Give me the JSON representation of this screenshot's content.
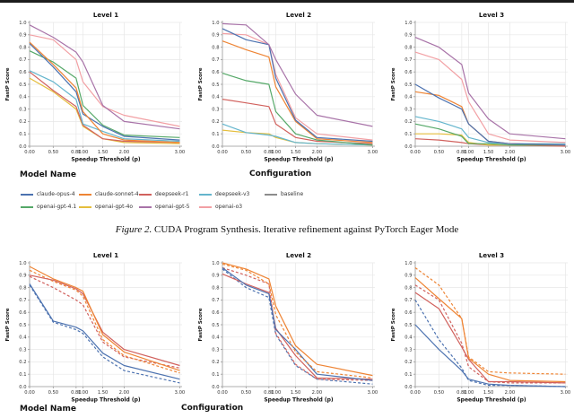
{
  "axis": {
    "xlabel": "Speedup Threshold (p)",
    "ylabel": "FastP Score",
    "x_ticks": [
      "0.00",
      "0.50",
      "0.80",
      "1.00",
      "1.50",
      "2.00",
      "3.00"
    ],
    "x_tick_pos": [
      0.0,
      0.155,
      0.305,
      0.35,
      0.48,
      0.62,
      0.985
    ],
    "y_ticks": [
      "1.0",
      "0.9",
      "0.8",
      "0.7",
      "0.6",
      "0.5",
      "0.4",
      "0.3",
      "0.2",
      "0.1",
      "0.0"
    ],
    "ylim": [
      0.0,
      1.0
    ],
    "grid": true
  },
  "colors": {
    "blue": "#4C72B0",
    "orange": "#EE8434",
    "red": "#D1615D",
    "cyan": "#64B5CD",
    "gray": "#8C8C8C",
    "green": "#55A868",
    "yellow": "#E5BE3D",
    "purple": "#A873A8",
    "pink": "#F2A0A4"
  },
  "caption": {
    "prefix": "Figure 2.",
    "text": " CUDA Program Synthesis. Iterative refinement against PyTorch Eager Mode"
  },
  "figure_top": {
    "legend": {
      "model_name_title": "Model Name",
      "configuration_title": "Configuration",
      "rows": [
        [
          {
            "label": "claude-opus-4",
            "color": "#4C72B0",
            "dash": false
          },
          {
            "label": "claude-sonnet-4",
            "color": "#EE8434",
            "dash": false
          },
          {
            "label": "deepseek-r1",
            "color": "#D1615D",
            "dash": false
          },
          {
            "label": "deepseek-v3",
            "color": "#64B5CD",
            "dash": false
          },
          {
            "label": "baseline",
            "color": "#8C8C8C",
            "dash": false
          }
        ],
        [
          {
            "label": "openai-gpt-4.1",
            "color": "#55A868",
            "dash": false
          },
          {
            "label": "openai-gpt-4o",
            "color": "#E5BE3D",
            "dash": false
          },
          {
            "label": "openai-gpt-5",
            "color": "#A873A8",
            "dash": false
          },
          {
            "label": "openai-o3",
            "color": "#F2A0A4",
            "dash": false
          }
        ]
      ]
    }
  },
  "figure_bottom": {
    "legend": {
      "model_name_title": "Model Name",
      "configuration_title": "Configuration",
      "rows": []
    }
  },
  "chart_data": [
    {
      "type": "line",
      "title": "Level 1",
      "xlabel": "Speedup Threshold (p)",
      "ylabel": "FastP Score",
      "x": [
        0.0,
        0.5,
        0.8,
        1.0,
        1.5,
        2.0,
        3.0
      ],
      "ylim": [
        0.0,
        1.0
      ],
      "series": [
        {
          "name": "openai-gpt-4o",
          "color": "#E5BE3D",
          "dash": false,
          "values": [
            0.55,
            0.44,
            0.3,
            0.16,
            0.06,
            0.03,
            0.02
          ]
        },
        {
          "name": "deepseek-r1",
          "color": "#D1615D",
          "dash": false,
          "values": [
            0.6,
            0.45,
            0.32,
            0.17,
            0.06,
            0.04,
            0.03
          ]
        },
        {
          "name": "deepseek-v3",
          "color": "#64B5CD",
          "dash": false,
          "values": [
            0.61,
            0.52,
            0.38,
            0.18,
            0.12,
            0.06,
            0.04
          ]
        },
        {
          "name": "openai-gpt-4.1",
          "color": "#55A868",
          "dash": false,
          "values": [
            0.77,
            0.68,
            0.55,
            0.33,
            0.17,
            0.09,
            0.07
          ]
        },
        {
          "name": "claude-opus-4",
          "color": "#4C72B0",
          "dash": false,
          "values": [
            0.83,
            0.64,
            0.44,
            0.26,
            0.16,
            0.08,
            0.05
          ]
        },
        {
          "name": "claude-sonnet-4",
          "color": "#EE8434",
          "dash": false,
          "values": [
            0.84,
            0.66,
            0.47,
            0.28,
            0.1,
            0.05,
            0.03
          ]
        },
        {
          "name": "openai-o3",
          "color": "#F2A0A4",
          "dash": false,
          "values": [
            0.9,
            0.86,
            0.7,
            0.52,
            0.32,
            0.25,
            0.16
          ]
        },
        {
          "name": "openai-gpt-5",
          "color": "#A873A8",
          "dash": false,
          "values": [
            0.98,
            0.88,
            0.76,
            0.68,
            0.33,
            0.2,
            0.14
          ]
        }
      ]
    },
    {
      "type": "line",
      "title": "Level 2",
      "xlabel": "Speedup Threshold (p)",
      "ylabel": "FastP Score",
      "x": [
        0.0,
        0.5,
        0.8,
        1.0,
        1.5,
        2.0,
        3.0
      ],
      "ylim": [
        0.0,
        1.0
      ],
      "series": [
        {
          "name": "openai-gpt-4o",
          "color": "#E5BE3D",
          "dash": false,
          "values": [
            0.13,
            0.11,
            0.1,
            0.07,
            0.03,
            0.02,
            0.01
          ]
        },
        {
          "name": "deepseek-v3",
          "color": "#64B5CD",
          "dash": false,
          "values": [
            0.18,
            0.11,
            0.09,
            0.08,
            0.03,
            0.02,
            0.01
          ]
        },
        {
          "name": "deepseek-r1",
          "color": "#D1615D",
          "dash": false,
          "values": [
            0.38,
            0.35,
            0.32,
            0.18,
            0.07,
            0.04,
            0.02
          ]
        },
        {
          "name": "openai-gpt-4.1",
          "color": "#55A868",
          "dash": false,
          "values": [
            0.59,
            0.53,
            0.5,
            0.28,
            0.1,
            0.05,
            0.01
          ]
        },
        {
          "name": "claude-sonnet-4",
          "color": "#EE8434",
          "dash": false,
          "values": [
            0.85,
            0.78,
            0.72,
            0.48,
            0.2,
            0.06,
            0.03
          ]
        },
        {
          "name": "openai-o3",
          "color": "#F2A0A4",
          "dash": false,
          "values": [
            0.91,
            0.9,
            0.82,
            0.58,
            0.23,
            0.1,
            0.05
          ]
        },
        {
          "name": "claude-opus-4",
          "color": "#4C72B0",
          "dash": false,
          "values": [
            0.95,
            0.86,
            0.82,
            0.55,
            0.21,
            0.07,
            0.04
          ]
        },
        {
          "name": "openai-gpt-5",
          "color": "#A873A8",
          "dash": false,
          "values": [
            0.99,
            0.98,
            0.82,
            0.7,
            0.42,
            0.25,
            0.16
          ]
        }
      ]
    },
    {
      "type": "line",
      "title": "Level 3",
      "xlabel": "Speedup Threshold (p)",
      "ylabel": "FastP Score",
      "x": [
        0.0,
        0.5,
        0.8,
        1.0,
        1.5,
        2.0,
        3.0
      ],
      "ylim": [
        0.0,
        1.0
      ],
      "series": [
        {
          "name": "deepseek-r1",
          "color": "#D1615D",
          "dash": false,
          "values": [
            0.06,
            0.05,
            0.03,
            0.02,
            0.01,
            0.01,
            0.0
          ]
        },
        {
          "name": "openai-gpt-4o",
          "color": "#E5BE3D",
          "dash": false,
          "values": [
            0.1,
            0.1,
            0.09,
            0.03,
            0.01,
            0.01,
            0.01
          ]
        },
        {
          "name": "openai-gpt-4.1",
          "color": "#55A868",
          "dash": false,
          "values": [
            0.18,
            0.14,
            0.08,
            0.02,
            0.02,
            0.01,
            0.01
          ]
        },
        {
          "name": "deepseek-v3",
          "color": "#64B5CD",
          "dash": false,
          "values": [
            0.24,
            0.2,
            0.14,
            0.07,
            0.03,
            0.02,
            0.02
          ]
        },
        {
          "name": "claude-sonnet-4",
          "color": "#EE8434",
          "dash": false,
          "values": [
            0.44,
            0.41,
            0.32,
            0.18,
            0.04,
            0.02,
            0.01
          ]
        },
        {
          "name": "claude-opus-4",
          "color": "#4C72B0",
          "dash": false,
          "values": [
            0.5,
            0.39,
            0.3,
            0.18,
            0.04,
            0.02,
            0.01
          ]
        },
        {
          "name": "openai-o3",
          "color": "#F2A0A4",
          "dash": false,
          "values": [
            0.76,
            0.7,
            0.54,
            0.36,
            0.1,
            0.05,
            0.03
          ]
        },
        {
          "name": "openai-gpt-5",
          "color": "#A873A8",
          "dash": false,
          "values": [
            0.88,
            0.8,
            0.66,
            0.43,
            0.22,
            0.1,
            0.06
          ]
        }
      ]
    },
    {
      "type": "line",
      "title": "Level 1",
      "xlabel": "Speedup Threshold (p)",
      "ylabel": "FastP Score",
      "x": [
        0.0,
        0.5,
        0.8,
        1.0,
        1.5,
        2.0,
        3.0
      ],
      "ylim": [
        0.0,
        1.0
      ],
      "series": [
        {
          "name": "blue dashed",
          "color": "#4C72B0",
          "dash": true,
          "values": [
            0.82,
            0.52,
            0.46,
            0.43,
            0.24,
            0.13,
            0.03
          ]
        },
        {
          "name": "blue solid",
          "color": "#4C72B0",
          "dash": false,
          "values": [
            0.83,
            0.53,
            0.48,
            0.45,
            0.27,
            0.17,
            0.06
          ]
        },
        {
          "name": "red dashed",
          "color": "#D1615D",
          "dash": true,
          "values": [
            0.89,
            0.8,
            0.7,
            0.66,
            0.36,
            0.24,
            0.15
          ]
        },
        {
          "name": "orange dashed",
          "color": "#EE8434",
          "dash": true,
          "values": [
            0.94,
            0.85,
            0.78,
            0.73,
            0.38,
            0.25,
            0.11
          ]
        },
        {
          "name": "red solid",
          "color": "#D1615D",
          "dash": false,
          "values": [
            0.9,
            0.86,
            0.79,
            0.75,
            0.44,
            0.3,
            0.17
          ]
        },
        {
          "name": "orange solid",
          "color": "#EE8434",
          "dash": false,
          "values": [
            0.97,
            0.87,
            0.8,
            0.77,
            0.42,
            0.28,
            0.13
          ]
        }
      ]
    },
    {
      "type": "line",
      "title": "Level 2",
      "xlabel": "Speedup Threshold (p)",
      "ylabel": "FastP Score",
      "x": [
        0.0,
        0.5,
        0.8,
        1.0,
        1.5,
        2.0,
        3.0
      ],
      "ylim": [
        0.0,
        1.0
      ],
      "series": [
        {
          "name": "blue dashed",
          "color": "#4C72B0",
          "dash": true,
          "values": [
            0.95,
            0.8,
            0.72,
            0.42,
            0.17,
            0.06,
            0.02
          ]
        },
        {
          "name": "red dashed",
          "color": "#D1615D",
          "dash": true,
          "values": [
            0.96,
            0.9,
            0.83,
            0.43,
            0.18,
            0.06,
            0.05
          ]
        },
        {
          "name": "red solid",
          "color": "#D1615D",
          "dash": false,
          "values": [
            0.91,
            0.83,
            0.76,
            0.47,
            0.25,
            0.07,
            0.06
          ]
        },
        {
          "name": "blue solid",
          "color": "#4C72B0",
          "dash": false,
          "values": [
            0.96,
            0.82,
            0.75,
            0.46,
            0.3,
            0.1,
            0.05
          ]
        },
        {
          "name": "orange dashed",
          "color": "#EE8434",
          "dash": true,
          "values": [
            0.99,
            0.94,
            0.83,
            0.58,
            0.28,
            0.12,
            0.07
          ]
        },
        {
          "name": "orange solid",
          "color": "#EE8434",
          "dash": false,
          "values": [
            1.0,
            0.95,
            0.87,
            0.65,
            0.33,
            0.18,
            0.09
          ]
        }
      ]
    },
    {
      "type": "line",
      "title": "Level 3",
      "xlabel": "Speedup Threshold (p)",
      "ylabel": "FastP Score",
      "x": [
        0.0,
        0.5,
        0.8,
        1.0,
        1.5,
        2.0,
        3.0
      ],
      "ylim": [
        0.0,
        1.0
      ],
      "series": [
        {
          "name": "blue solid",
          "color": "#4C72B0",
          "dash": false,
          "values": [
            0.5,
            0.3,
            0.13,
            0.06,
            0.02,
            0.01,
            0.0
          ]
        },
        {
          "name": "blue dashed",
          "color": "#4C72B0",
          "dash": true,
          "values": [
            0.7,
            0.38,
            0.15,
            0.05,
            0.01,
            0.01,
            0.0
          ]
        },
        {
          "name": "red solid",
          "color": "#D1615D",
          "dash": false,
          "values": [
            0.76,
            0.63,
            0.32,
            0.22,
            0.04,
            0.04,
            0.03
          ]
        },
        {
          "name": "red dashed",
          "color": "#D1615D",
          "dash": true,
          "values": [
            0.82,
            0.7,
            0.35,
            0.16,
            0.04,
            0.03,
            0.03
          ]
        },
        {
          "name": "orange solid",
          "color": "#EE8434",
          "dash": false,
          "values": [
            0.88,
            0.71,
            0.55,
            0.23,
            0.1,
            0.05,
            0.04
          ]
        },
        {
          "name": "orange dashed",
          "color": "#EE8434",
          "dash": true,
          "values": [
            0.96,
            0.82,
            0.55,
            0.24,
            0.12,
            0.11,
            0.1
          ]
        }
      ]
    }
  ]
}
